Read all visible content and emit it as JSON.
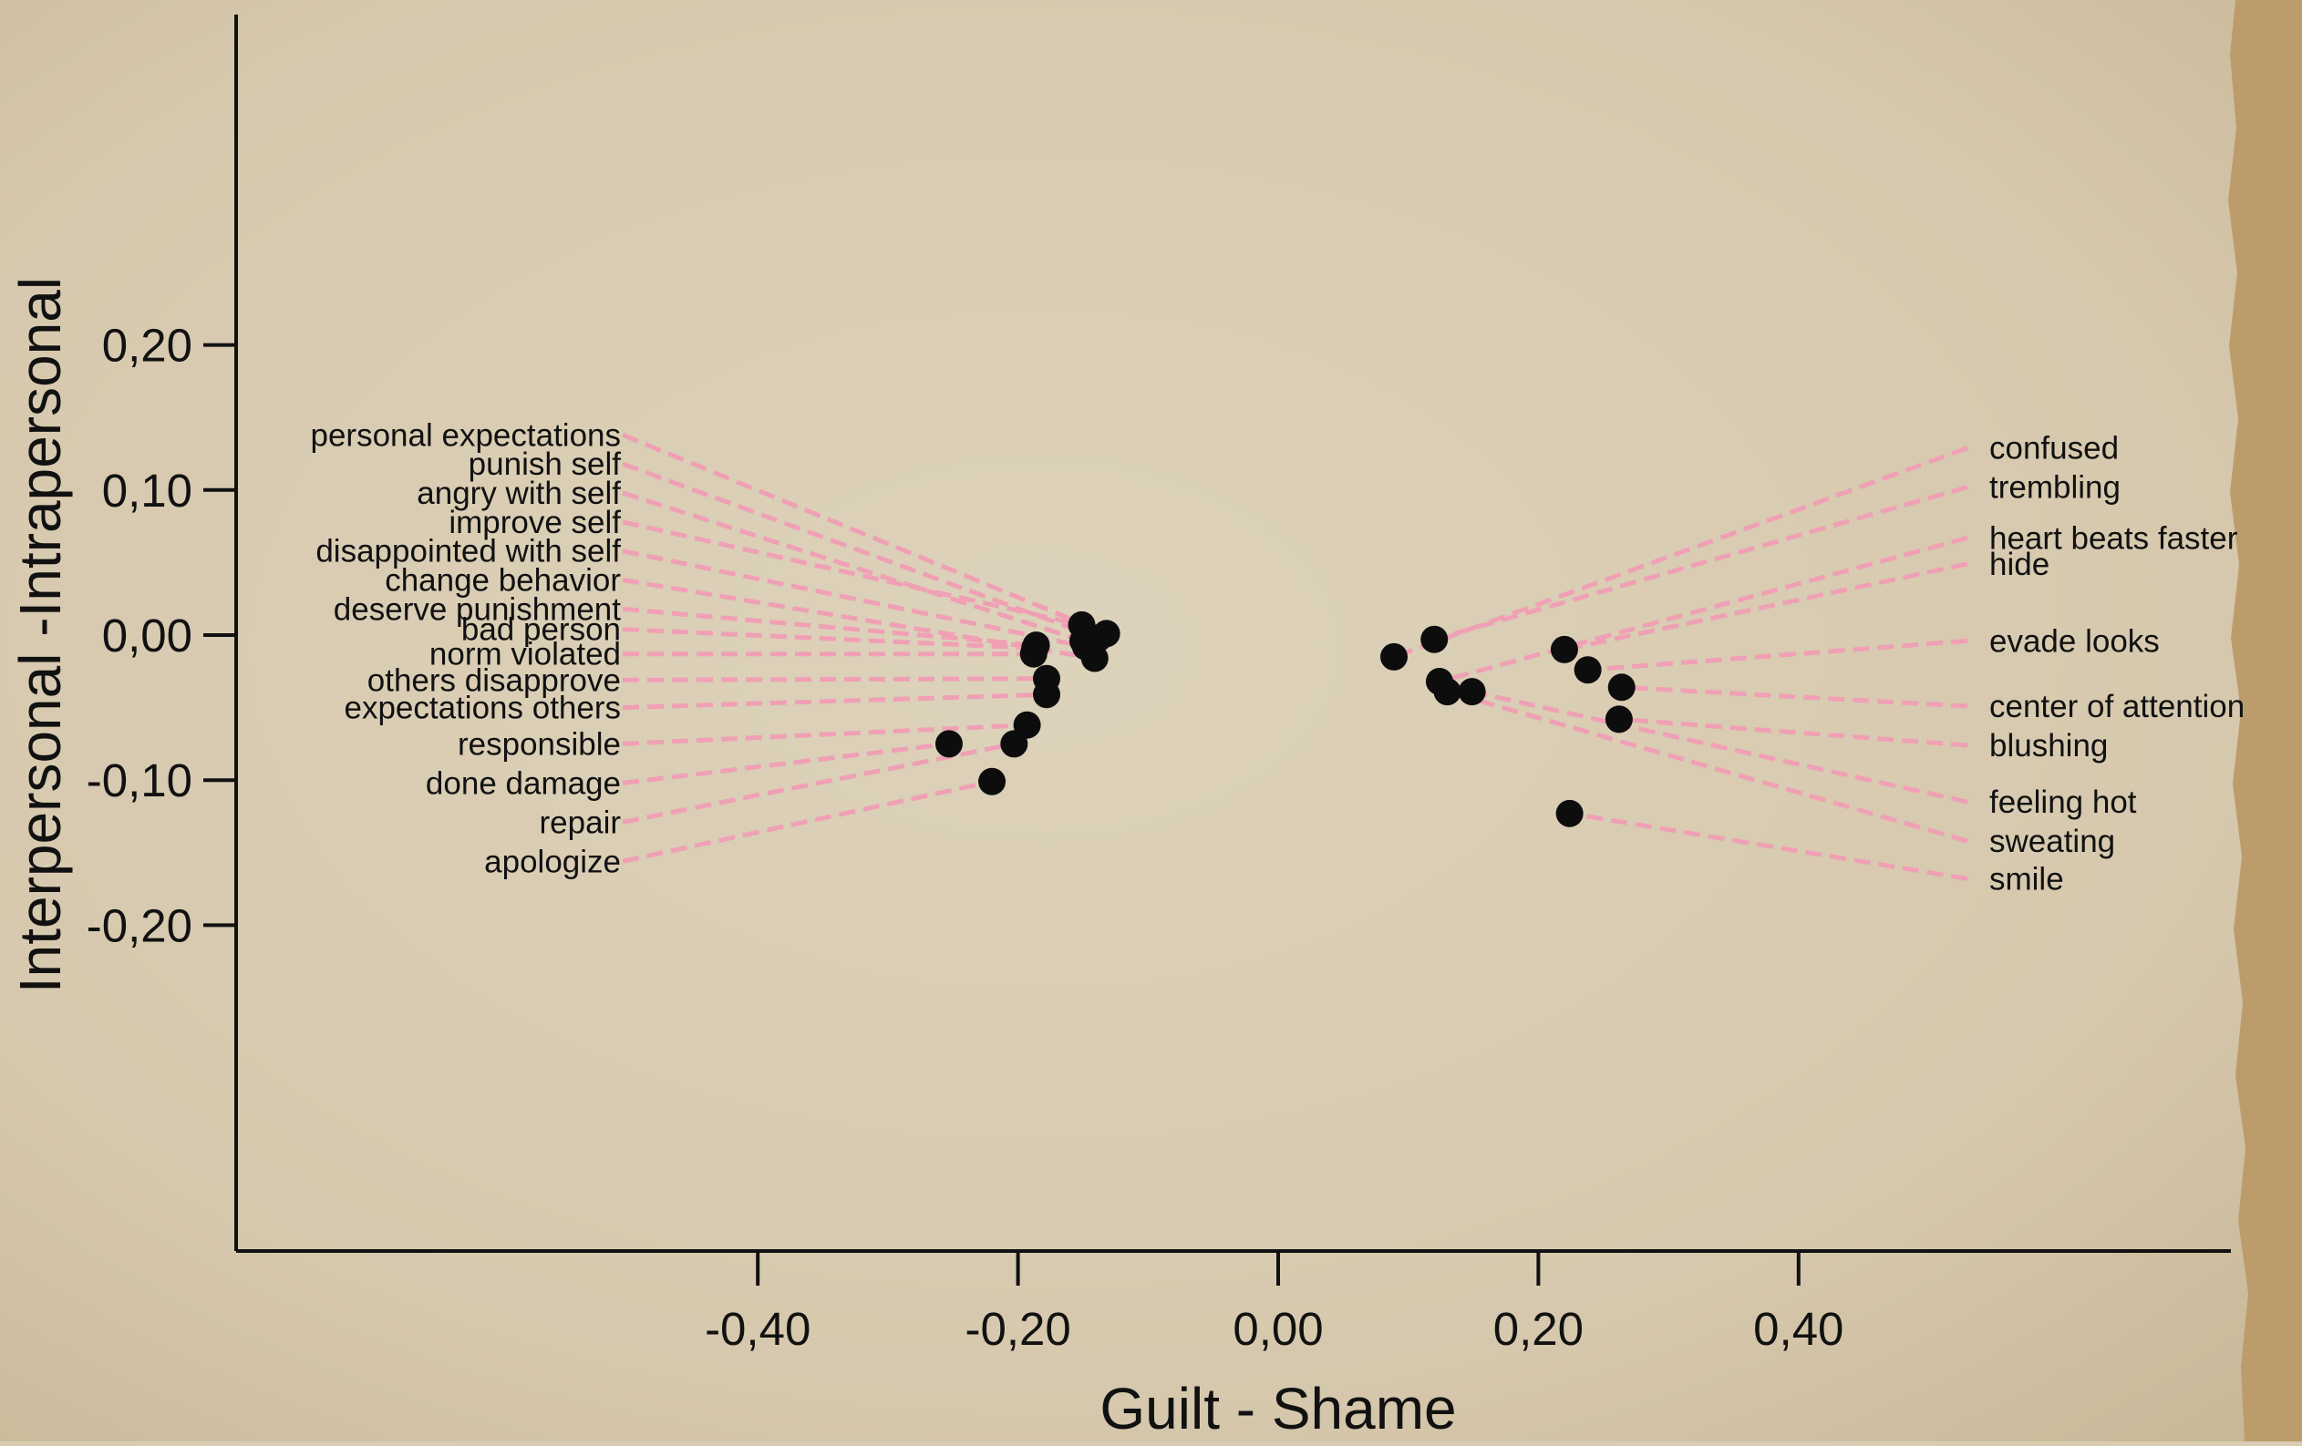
{
  "colors": {
    "paper": "#d9ccb3",
    "paper_edge": "#b99868",
    "axis": "#111111",
    "leader": "#f0a0b4",
    "point": "#0d0d0d"
  },
  "chart_data": {
    "type": "scatter",
    "xlabel": "Guilt  - Shame",
    "ylabel": "Interpersonal    -Intrapersonal",
    "xlim": [
      -0.5,
      0.45
    ],
    "ylim": [
      -0.21,
      0.215
    ],
    "x_ticks": [
      -0.4,
      -0.2,
      0.0,
      0.2,
      0.4
    ],
    "y_ticks": [
      -0.2,
      -0.1,
      0.0,
      0.1,
      0.2
    ],
    "x_tick_labels": [
      "-0,40",
      "-0,20",
      "0,00",
      "0,20",
      "0,40"
    ],
    "y_tick_labels": [
      "-0,20",
      "-0,10",
      "0,00",
      "0,10",
      "0,20"
    ],
    "grid": false,
    "legend": "none",
    "points": [
      {
        "label": "personal expectations",
        "x": -0.132,
        "y": 0.001,
        "label_side": "left",
        "label_y": 0.138
      },
      {
        "label": "punish self",
        "x": -0.138,
        "y": -0.002,
        "label_side": "left",
        "label_y": 0.118
      },
      {
        "label": "angry with self",
        "x": -0.15,
        "y": -0.004,
        "label_side": "left",
        "label_y": 0.098
      },
      {
        "label": "improve self",
        "x": -0.151,
        "y": 0.007,
        "label_side": "left",
        "label_y": 0.078
      },
      {
        "label": "disappointed with self",
        "x": -0.148,
        "y": -0.008,
        "label_side": "left",
        "label_y": 0.058
      },
      {
        "label": "change behavior",
        "x": -0.141,
        "y": -0.016,
        "label_side": "left",
        "label_y": 0.038
      },
      {
        "label": "deserve punishment",
        "x": -0.186,
        "y": -0.007,
        "label_side": "left",
        "label_y": 0.018
      },
      {
        "label": "bad person",
        "x": -0.187,
        "y": -0.009,
        "label_side": "left",
        "label_y": 0.004
      },
      {
        "label": "norm violated",
        "x": -0.188,
        "y": -0.013,
        "label_side": "left",
        "label_y": -0.013
      },
      {
        "label": "others disapprove",
        "x": -0.178,
        "y": -0.03,
        "label_side": "left",
        "label_y": -0.031
      },
      {
        "label": "expectations others",
        "x": -0.178,
        "y": -0.041,
        "label_side": "left",
        "label_y": -0.05
      },
      {
        "label": "responsible",
        "x": -0.193,
        "y": -0.062,
        "label_side": "left",
        "label_y": -0.075
      },
      {
        "label": "done damage",
        "x": -0.253,
        "y": -0.075,
        "label_side": "left",
        "label_y": -0.102
      },
      {
        "label": "repair",
        "x": -0.203,
        "y": -0.075,
        "label_side": "left",
        "label_y": -0.129
      },
      {
        "label": "apologize",
        "x": -0.22,
        "y": -0.101,
        "label_side": "left",
        "label_y": -0.156
      },
      {
        "label": "confused",
        "x": 0.089,
        "y": -0.015,
        "label_side": "right",
        "label_y": 0.129
      },
      {
        "label": "trembling",
        "x": 0.12,
        "y": -0.003,
        "label_side": "right",
        "label_y": 0.102
      },
      {
        "label": "heart beats faster",
        "x": 0.124,
        "y": -0.032,
        "label_side": "right",
        "label_y": 0.067
      },
      {
        "label": "hide",
        "x": 0.22,
        "y": -0.01,
        "label_side": "right",
        "label_y": 0.049
      },
      {
        "label": "evade looks",
        "x": 0.238,
        "y": -0.024,
        "label_side": "right",
        "label_y": -0.004
      },
      {
        "label": "center  of attention",
        "x": 0.264,
        "y": -0.036,
        "label_side": "right",
        "label_y": -0.049
      },
      {
        "label": "blushing",
        "x": 0.262,
        "y": -0.058,
        "label_side": "right",
        "label_y": -0.076
      },
      {
        "label": "feeling hot",
        "x": 0.149,
        "y": -0.039,
        "label_side": "right",
        "label_y": -0.115
      },
      {
        "label": "sweating",
        "x": 0.13,
        "y": -0.039,
        "label_side": "right",
        "label_y": -0.142
      },
      {
        "label": "smile",
        "x": 0.224,
        "y": -0.123,
        "label_side": "right",
        "label_y": -0.168
      }
    ]
  }
}
